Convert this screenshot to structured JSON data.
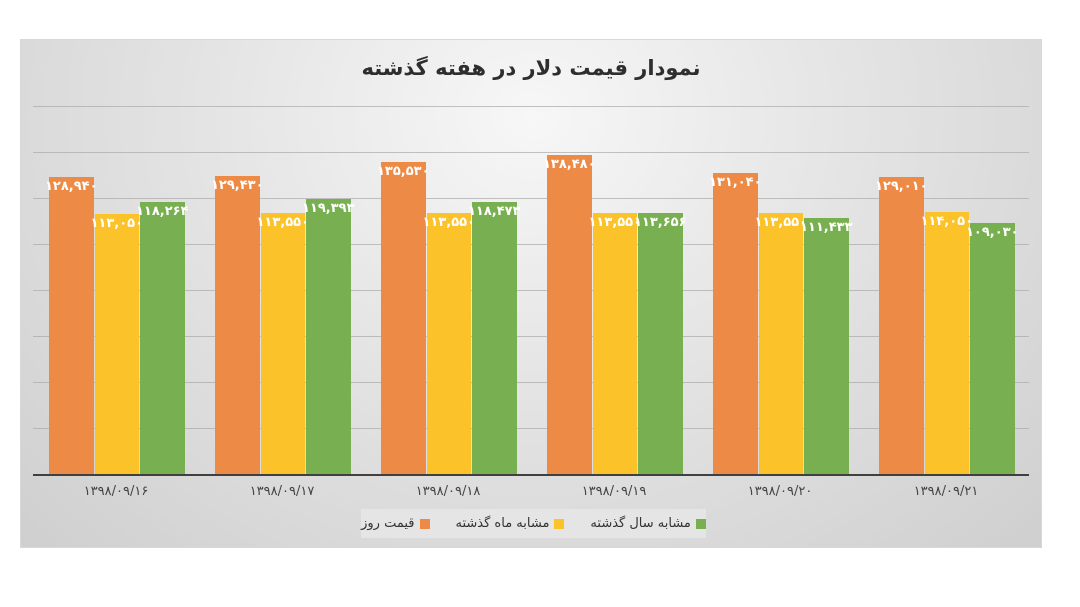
{
  "chart_data": {
    "type": "bar",
    "title": "نمودار قیمت دلار در هفته گذشته",
    "xlabel": "",
    "ylabel": "",
    "ylim": [
      0,
      160000
    ],
    "grid": true,
    "legend_position": "bottom",
    "categories": [
      "۱۳۹۸/۰۹/۱۶",
      "۱۳۹۸/۰۹/۱۷",
      "۱۳۹۸/۰۹/۱۸",
      "۱۳۹۸/۰۹/۱۹",
      "۱۳۹۸/۰۹/۲۰",
      "۱۳۹۸/۰۹/۲۱"
    ],
    "series": [
      {
        "name": "قیمت روز",
        "color": "#ED8A45",
        "values": [
          128940,
          129430,
          135530,
          138480,
          131040,
          129010
        ],
        "labels": [
          "۱۲۸,۹۴۰",
          "۱۲۹,۴۳۰",
          "۱۳۵,۵۳۰",
          "۱۳۸,۴۸۰",
          "۱۳۱,۰۴۰",
          "۱۲۹,۰۱۰"
        ]
      },
      {
        "name": "مشابه ماه گذشته",
        "color": "#FBC22A",
        "values": [
          113050,
          113550,
          113550,
          113550,
          113550,
          114050
        ],
        "labels": [
          "۱۱۳,۰۵۰",
          "۱۱۳,۵۵۰",
          "۱۱۳,۵۵۰",
          "۱۱۳,۵۵۰",
          "۱۱۳,۵۵۰",
          "۱۱۴,۰۵۰"
        ]
      },
      {
        "name": "مشابه سال گذشته",
        "color": "#78B051",
        "values": [
          118264,
          119393,
          118473,
          113656,
          111433,
          109030
        ],
        "labels": [
          "۱۱۸,۲۶۴",
          "۱۱۹,۳۹۳",
          "۱۱۸,۴۷۳",
          "۱۱۳,۶۵۶",
          "۱۱۱,۴۳۳",
          "۱۰۹,۰۳۰"
        ]
      }
    ]
  },
  "legend": {
    "items": [
      {
        "label": "قیمت روز",
        "color": "#ED8A45"
      },
      {
        "label": "مشابه ماه گذشته",
        "color": "#FBC22A"
      },
      {
        "label": "مشابه سال گذشته",
        "color": "#78B051"
      }
    ]
  }
}
